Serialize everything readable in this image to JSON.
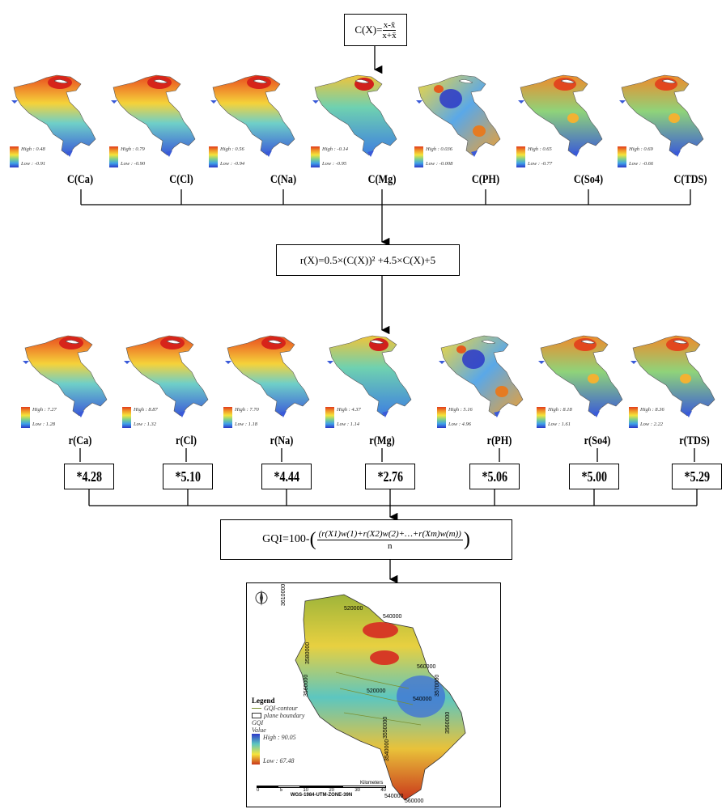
{
  "formula_c": {
    "lhs": "C(X)=",
    "num": "x-x̄",
    "den": "x+x̄"
  },
  "formula_r": "r(X)=0.5×(C(X))² +4.5×C(X)+5",
  "formula_gqi": {
    "lhs": "GQI=100-",
    "num": "(r(X1)w(1)+r(X2)w(2)+…+r(Xm)w(m))",
    "den": "n"
  },
  "c_maps": [
    {
      "label": "C(Ca)",
      "high": "High : 0.48",
      "low": "Low : -0.91"
    },
    {
      "label": "C(Cl)",
      "high": "High : 0.79",
      "low": "Low : -0.90"
    },
    {
      "label": "C(Na)",
      "high": "High : 0.56",
      "low": "Low : -0.94"
    },
    {
      "label": "C(Mg)",
      "high": "High : -0.14",
      "low": "Low : -0.95"
    },
    {
      "label": "C(PH)",
      "high": "High : 0.036",
      "low": "Low : -0.008"
    },
    {
      "label": "C(So4)",
      "high": "High : 0.65",
      "low": "Low : -0.77"
    },
    {
      "label": "C(TDS)",
      "high": "High : 0.69",
      "low": "Low : -0.66"
    }
  ],
  "r_maps": [
    {
      "label": "r(Ca)",
      "high": "High : 7.27",
      "low": "Low : 1.28",
      "weight": "*4.28"
    },
    {
      "label": "r(Cl)",
      "high": "High : 8.87",
      "low": "Low : 1.32",
      "weight": "*5.10"
    },
    {
      "label": "r(Na)",
      "high": "High : 7.70",
      "low": "Low : 1.18",
      "weight": "*4.44"
    },
    {
      "label": "r(Mg)",
      "high": "High : 4.37",
      "low": "Low : 1.14",
      "weight": "*2.76"
    },
    {
      "label": "r(PH)",
      "high": "High : 5.16",
      "low": "Low : 4.96",
      "weight": "*5.06"
    },
    {
      "label": "r(So4)",
      "high": "High : 8.18",
      "low": "Low : 1.61",
      "weight": "*5.00"
    },
    {
      "label": "r(TDS)",
      "high": "High : 8.36",
      "low": "Low : 2.22",
      "weight": "*5.29"
    }
  ],
  "final_map": {
    "legend_title": "Legend",
    "contour": "GQI-contour",
    "boundary": "plane boundary",
    "gqi": "GQI",
    "value": "Value",
    "high": "High : 90.05",
    "low": "Low : 67.48",
    "scale_unit": "Kilometers",
    "scale_ticks": [
      "0",
      "5",
      "10",
      "20",
      "30",
      "40"
    ],
    "projection": "WGS-1984-UTM-ZONE-39N",
    "coords": [
      "540000",
      "520000",
      "540000",
      "560000",
      "3610000",
      "3580000",
      "3560000",
      "3550000",
      "3540000",
      "3570000",
      "3560000",
      "540000",
      "520000",
      "560000"
    ]
  },
  "colors": {
    "high": "#e23b1b",
    "mid": "#f5e43a",
    "low": "#2c38c8",
    "line": "#000000"
  }
}
